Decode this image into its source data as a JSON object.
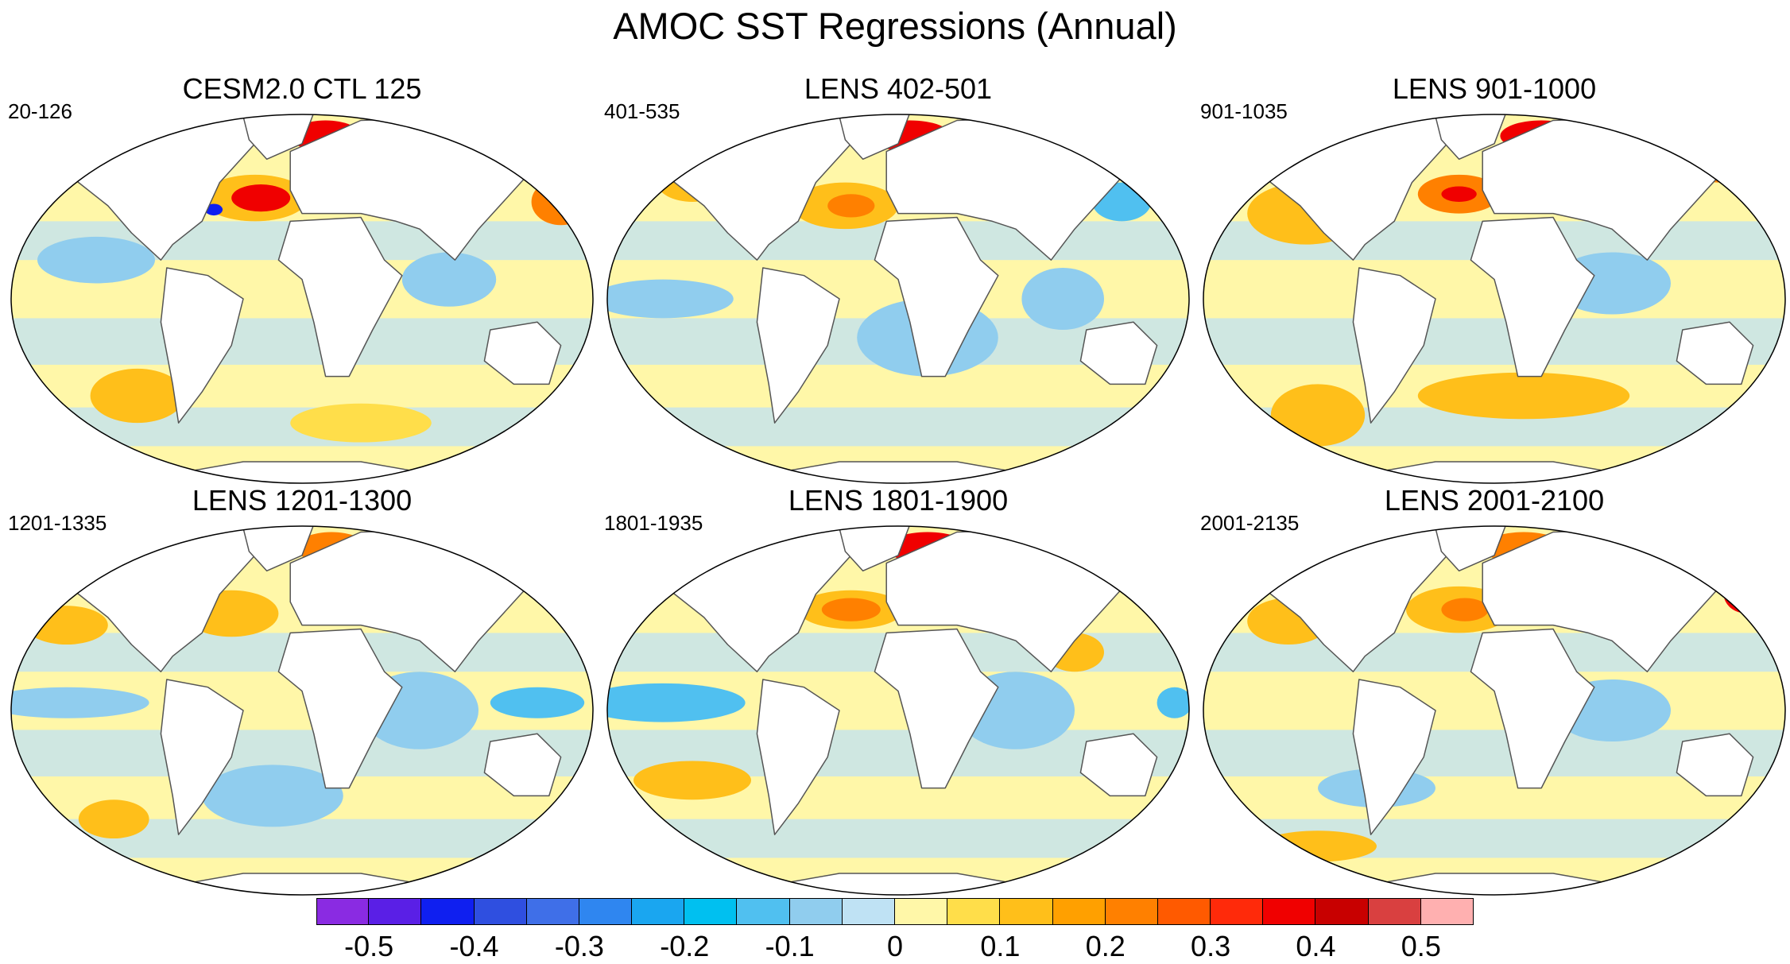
{
  "title": "AMOC SST Regressions (Annual)",
  "panels": [
    {
      "id": "p1",
      "title": "CESM2.0 CTL 125",
      "range": "20-126"
    },
    {
      "id": "p2",
      "title": "LENS 402-501",
      "range": "401-535"
    },
    {
      "id": "p3",
      "title": "LENS 901-1000",
      "range": "901-1035"
    },
    {
      "id": "p4",
      "title": "LENS 1201-1300",
      "range": "1201-1335"
    },
    {
      "id": "p5",
      "title": "LENS 1801-1900",
      "range": "1801-1935"
    },
    {
      "id": "p6",
      "title": "LENS 2001-2100",
      "range": "2001-2135"
    }
  ],
  "colorbar": {
    "colors": [
      "#8a2be2",
      "#5a1fe6",
      "#0f1ff0",
      "#2f4fe0",
      "#3f6fe8",
      "#2f86f0",
      "#1aa6f0",
      "#00c0f0",
      "#50c0f0",
      "#90cdee",
      "#bfe2f4",
      "#fff7a8",
      "#ffde4a",
      "#ffbf1a",
      "#ffa000",
      "#ff8000",
      "#ff5a00",
      "#ff2a0a",
      "#f00000",
      "#c80000",
      "#d94040",
      "#ffb0b0"
    ],
    "labels": [
      "-0.5",
      "-0.4",
      "-0.3",
      "-0.2",
      "-0.1",
      "0",
      "0.1",
      "0.2",
      "0.3",
      "0.4",
      "0.5"
    ],
    "label_values": [
      -0.5,
      -0.4,
      -0.3,
      -0.2,
      -0.1,
      0,
      0.1,
      0.2,
      0.3,
      0.4,
      0.5
    ],
    "min": -0.55,
    "max": 0.55,
    "step": 0.05
  },
  "map_colors": {
    "land": "#ffffff",
    "coast": "#555555",
    "neutral_pos": "#fff7a8",
    "neutral_neg": "#bfe2f4",
    "pos1": "#ffde4a",
    "pos2": "#ffbf1a",
    "pos3": "#ff8000",
    "pos4": "#f00000",
    "neg2": "#90cdee",
    "neg3": "#50c0f0",
    "neg5": "#0f1ff0"
  }
}
